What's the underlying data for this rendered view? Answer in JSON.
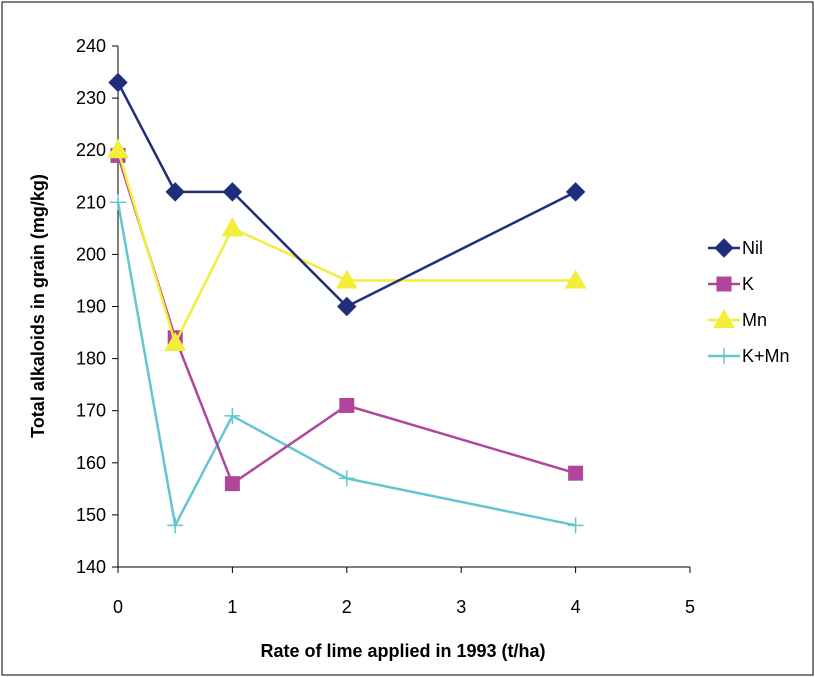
{
  "chart_data": {
    "type": "line",
    "title": "",
    "xlabel": "Rate of lime applied in 1993 (t/ha)",
    "ylabel": "Total alkaloids in grain (mg/kg)",
    "xlim": [
      0,
      5
    ],
    "ylim": [
      140,
      240
    ],
    "x_ticks": [
      0,
      1,
      2,
      3,
      4,
      5
    ],
    "y_ticks": [
      140,
      150,
      160,
      170,
      180,
      190,
      200,
      210,
      220,
      230,
      240
    ],
    "grid": false,
    "legend_position": "right",
    "series": [
      {
        "name": "Nil",
        "color": "#1F2E7A",
        "marker": "diamond",
        "x": [
          0,
          0.5,
          1,
          2,
          4
        ],
        "y": [
          233,
          212,
          212,
          190,
          212
        ]
      },
      {
        "name": "K",
        "color": "#B0469C",
        "marker": "square",
        "x": [
          0,
          0.5,
          1,
          2,
          4
        ],
        "y": [
          219,
          184,
          156,
          171,
          158
        ]
      },
      {
        "name": "Mn",
        "color": "#F2EE3A",
        "marker": "triangle",
        "x": [
          0,
          0.5,
          1,
          2,
          4
        ],
        "y": [
          220,
          183,
          205,
          195,
          195
        ]
      },
      {
        "name": "K+Mn",
        "color": "#63C6D3",
        "marker": "plus",
        "x": [
          0,
          0.5,
          1,
          2,
          4
        ],
        "y": [
          210,
          148,
          169,
          157,
          148
        ]
      }
    ]
  }
}
